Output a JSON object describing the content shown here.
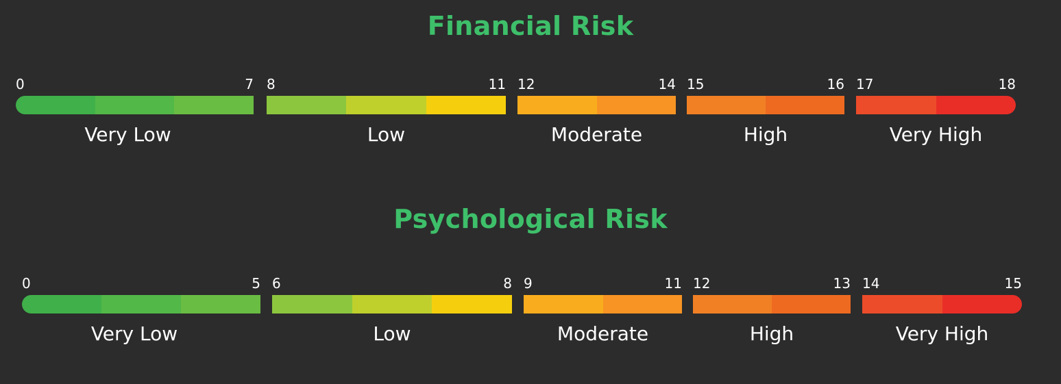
{
  "accent_color": "#3ebf6a",
  "risk_scales": [
    {
      "title": "Financial Risk",
      "segments": [
        {
          "label": "Very Low",
          "min": "0",
          "max": "7",
          "colors": [
            "#40b04a",
            "#52b848",
            "#6abd43"
          ]
        },
        {
          "label": "Low",
          "min": "8",
          "max": "11",
          "colors": [
            "#8cc63f",
            "#bfd02c",
            "#f5cf0e"
          ]
        },
        {
          "label": "Moderate",
          "min": "12",
          "max": "14",
          "colors": [
            "#f9ad1e",
            "#f79424"
          ]
        },
        {
          "label": "High",
          "min": "15",
          "max": "16",
          "colors": [
            "#f18025",
            "#ee6a21"
          ]
        },
        {
          "label": "Very High",
          "min": "17",
          "max": "18",
          "colors": [
            "#ec4c2a",
            "#e92e28"
          ]
        }
      ]
    },
    {
      "title": "Psychological Risk",
      "segments": [
        {
          "label": "Very Low",
          "min": "0",
          "max": "5",
          "colors": [
            "#40b04a",
            "#52b848",
            "#6abd43"
          ]
        },
        {
          "label": "Low",
          "min": "6",
          "max": "8",
          "colors": [
            "#8cc63f",
            "#bfd02c",
            "#f5cf0e"
          ]
        },
        {
          "label": "Moderate",
          "min": "9",
          "max": "11",
          "colors": [
            "#f9ad1e",
            "#f79424"
          ]
        },
        {
          "label": "High",
          "min": "12",
          "max": "13",
          "colors": [
            "#f18025",
            "#ee6a21"
          ]
        },
        {
          "label": "Very High",
          "min": "14",
          "max": "15",
          "colors": [
            "#ec4c2a",
            "#e92e28"
          ]
        }
      ]
    }
  ]
}
